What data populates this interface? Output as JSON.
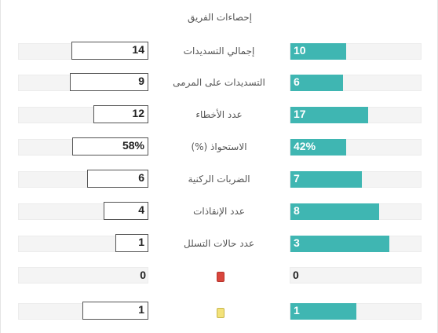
{
  "panel": {
    "title": "إحصاءات الفريق"
  },
  "colors": {
    "bar": "#3fb6b2",
    "red_card": "#d9463d",
    "yellow_card": "#f3e27a"
  },
  "rows": [
    {
      "label": "إجمالي التسديدات",
      "left": "14",
      "right": "10",
      "right_fraction": 0.42
    },
    {
      "label": "التسديدات على المرمى",
      "left": "9",
      "right": "6",
      "right_fraction": 0.4
    },
    {
      "label": "عدد الأخطاء",
      "left": "12",
      "right": "17",
      "right_fraction": 0.59
    },
    {
      "label": "الاستحواذ (%)",
      "left": "58%",
      "right": "42%",
      "right_fraction": 0.42
    },
    {
      "label": "الضربات الركنية",
      "left": "6",
      "right": "7",
      "right_fraction": 0.54
    },
    {
      "label": "عدد الإنقاذات",
      "left": "4",
      "right": "8",
      "right_fraction": 0.67
    },
    {
      "label": "عدد حالات التسلل",
      "left": "1",
      "right": "3",
      "right_fraction": 0.75
    },
    {
      "label_icon": "red-card-icon",
      "left": "0",
      "right": "0",
      "right_fraction": 0
    },
    {
      "label_icon": "yellow-card-icon",
      "left": "1",
      "right": "1",
      "right_fraction": 0.5
    }
  ]
}
